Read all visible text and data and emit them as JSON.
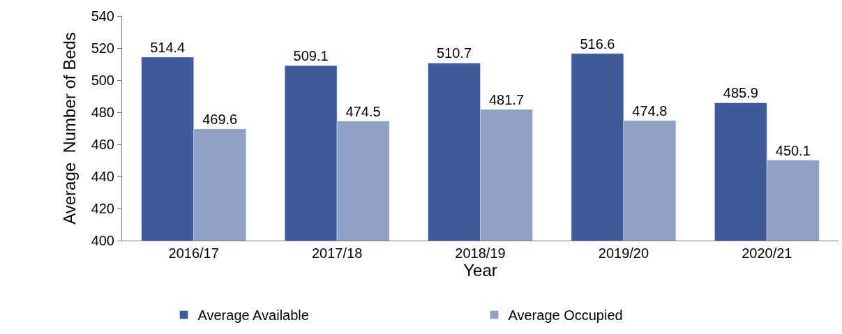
{
  "chart_data": {
    "type": "bar",
    "xlabel": "Year",
    "ylabel": "Average  Number of Beds",
    "categories": [
      "2016/17",
      "2017/18",
      "2018/19",
      "2019/20",
      "2020/21"
    ],
    "series": [
      {
        "name": "Average Available",
        "color": "#3f5a9a",
        "values": [
          514.4,
          509.1,
          510.7,
          516.6,
          485.9
        ]
      },
      {
        "name": "Average Occupied",
        "color": "#8f9fc6",
        "values": [
          469.6,
          474.5,
          481.7,
          474.8,
          450.1
        ]
      }
    ],
    "ylim": [
      400,
      540
    ],
    "yticks": [
      400,
      420,
      440,
      460,
      480,
      500,
      520,
      540
    ],
    "data_labels": true,
    "legend": "bottom"
  }
}
